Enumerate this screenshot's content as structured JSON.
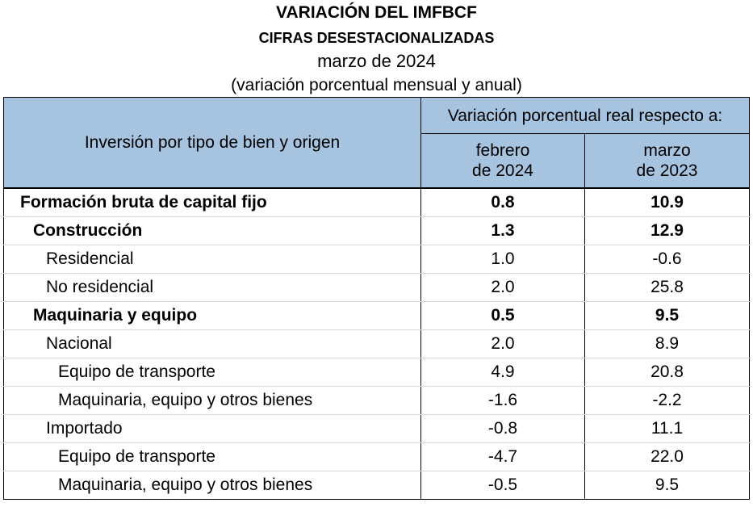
{
  "title": {
    "main": "VARIACIÓN DEL IMFBCF",
    "sub": "CIFRAS DESESTACIONALIZADAS",
    "period": "marzo de 2024",
    "note": "(variación porcentual mensual y anual)"
  },
  "table": {
    "row_header": "Inversión por tipo de bien y origen",
    "group_header": "Variación porcentual real respecto a:",
    "col_headers": [
      {
        "line1": "febrero",
        "line2": "de 2024"
      },
      {
        "line1": "marzo",
        "line2": "de 2023"
      }
    ],
    "rows": [
      {
        "label": "Formación bruta de capital fijo",
        "level": 0,
        "bold": true,
        "v1": "0.8",
        "v2": "10.9"
      },
      {
        "label": "Construcción",
        "level": 1,
        "bold": true,
        "v1": "1.3",
        "v2": "12.9"
      },
      {
        "label": "Residencial",
        "level": 2,
        "bold": false,
        "v1": "1.0",
        "v2": "-0.6"
      },
      {
        "label": "No residencial",
        "level": 2,
        "bold": false,
        "v1": "2.0",
        "v2": "25.8"
      },
      {
        "label": "Maquinaria y equipo",
        "level": 1,
        "bold": true,
        "v1": "0.5",
        "v2": "9.5"
      },
      {
        "label": "Nacional",
        "level": 2,
        "bold": false,
        "v1": "2.0",
        "v2": "8.9"
      },
      {
        "label": "Equipo de transporte",
        "level": 3,
        "bold": false,
        "v1": "4.9",
        "v2": "20.8"
      },
      {
        "label": "Maquinaria, equipo y otros bienes",
        "level": 3,
        "bold": false,
        "v1": "-1.6",
        "v2": "-2.2"
      },
      {
        "label": "Importado",
        "level": 2,
        "bold": false,
        "v1": "-0.8",
        "v2": "11.1"
      },
      {
        "label": "Equipo de transporte",
        "level": 3,
        "bold": false,
        "v1": "-4.7",
        "v2": "22.0"
      },
      {
        "label": "Maquinaria, equipo y otros bienes",
        "level": 3,
        "bold": false,
        "v1": "-0.5",
        "v2": "9.5"
      }
    ]
  }
}
